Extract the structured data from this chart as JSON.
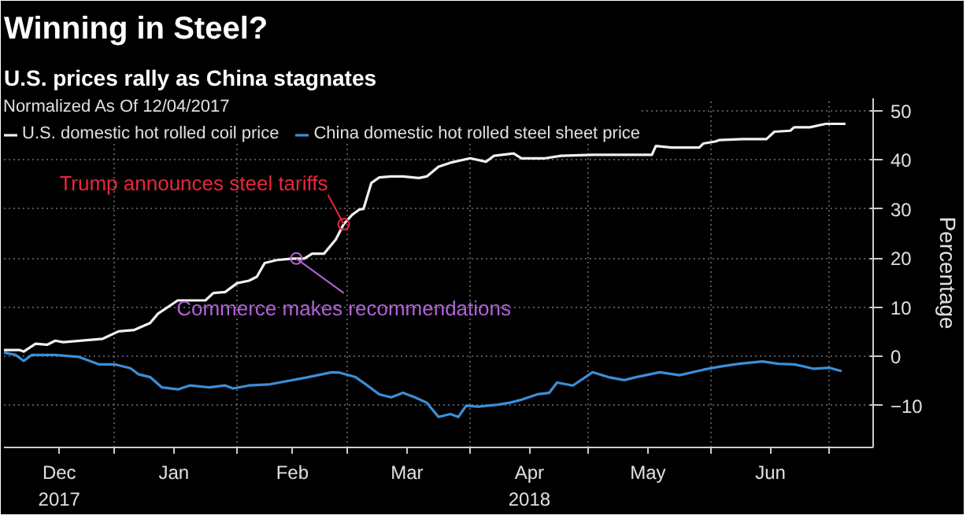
{
  "chart_data": {
    "type": "line",
    "title": "Winning in Steel?",
    "subtitle": "U.S. prices rally as China stagnates",
    "legend_title": "Normalized As Of 12/04/2017",
    "ylabel": "Percentage",
    "xlim": [
      "2017-12-04",
      "2018-07-12"
    ],
    "ylim": [
      -18.5,
      52.5
    ],
    "yticks": [
      -10,
      0,
      10,
      20,
      30,
      40,
      50
    ],
    "xticks": [
      {
        "value": "2017-12-18",
        "label": "Dec\n2017"
      },
      {
        "value": "2018-01-01",
        "label": null
      },
      {
        "value": "2018-01-16",
        "label": "Jan"
      },
      {
        "value": "2018-02-01",
        "label": null
      },
      {
        "value": "2018-02-15",
        "label": "Feb"
      },
      {
        "value": "2018-03-01",
        "label": null
      },
      {
        "value": "2018-03-16",
        "label": "Mar"
      },
      {
        "value": "2018-04-01",
        "label": null
      },
      {
        "value": "2018-04-16",
        "label": "Apr\n2018"
      },
      {
        "value": "2018-05-01",
        "label": null
      },
      {
        "value": "2018-05-16",
        "label": "May"
      },
      {
        "value": "2018-06-01",
        "label": null
      },
      {
        "value": "2018-06-16",
        "label": "Jun"
      },
      {
        "value": "2018-07-01",
        "label": null
      }
    ],
    "grid": true,
    "legend": "top left",
    "line_style": "solid",
    "annotations": [
      {
        "text": "Trump announces steel tariffs",
        "x": "2018-02-28",
        "y": 26.9
      },
      {
        "text": "Commerce makes recommendations",
        "x": "2018-02-16",
        "y": 19.9
      }
    ],
    "series": [
      {
        "name": "U.S. domestic hot rolled coil price",
        "color": "#f0f0f0",
        "x": [
          "2017-12-04",
          "2017-12-08",
          "2017-12-09",
          "2017-12-12",
          "2017-12-15",
          "2017-12-17",
          "2017-12-19",
          "2017-12-29",
          "2018-01-02",
          "2018-01-06",
          "2018-01-10",
          "2018-01-12",
          "2018-01-17",
          "2018-01-24",
          "2018-01-26",
          "2018-01-29",
          "2018-02-01",
          "2018-02-04",
          "2018-02-06",
          "2018-02-08",
          "2018-02-11",
          "2018-02-15",
          "2018-02-18",
          "2018-02-20",
          "2018-02-23",
          "2018-02-26",
          "2018-02-28",
          "2018-03-02",
          "2018-03-04",
          "2018-03-05",
          "2018-03-07",
          "2018-03-09",
          "2018-03-12",
          "2018-03-15",
          "2018-03-19",
          "2018-03-21",
          "2018-03-24",
          "2018-03-27",
          "2018-04-01",
          "2018-04-05",
          "2018-04-07",
          "2018-04-12",
          "2018-04-14",
          "2018-04-20",
          "2018-04-24",
          "2018-05-02",
          "2018-05-06",
          "2018-05-17",
          "2018-05-18",
          "2018-05-22",
          "2018-05-29",
          "2018-05-30",
          "2018-06-02",
          "2018-06-03",
          "2018-06-09",
          "2018-06-15",
          "2018-06-17",
          "2018-06-21",
          "2018-06-22",
          "2018-06-26",
          "2018-06-30",
          "2018-07-05"
        ],
        "values": [
          1.3,
          1.3,
          1.0,
          2.6,
          2.4,
          3.2,
          2.9,
          3.6,
          5.1,
          5.4,
          6.8,
          8.7,
          11.4,
          11.4,
          12.9,
          13.1,
          14.9,
          15.4,
          16.2,
          19.0,
          19.6,
          19.9,
          19.9,
          20.9,
          20.9,
          23.8,
          26.9,
          28.7,
          29.9,
          30.0,
          35.3,
          36.4,
          36.6,
          36.6,
          36.3,
          36.6,
          38.6,
          39.4,
          40.3,
          39.6,
          40.8,
          41.3,
          40.3,
          40.3,
          40.8,
          41.0,
          41.0,
          41.0,
          42.8,
          42.5,
          42.5,
          43.3,
          43.7,
          44.0,
          44.2,
          44.2,
          45.7,
          45.9,
          46.6,
          46.6,
          47.3,
          47.3
        ]
      },
      {
        "name": "China domestic hot rolled steel sheet price",
        "color": "#3b8fd8",
        "x": [
          "2017-12-04",
          "2017-12-07",
          "2017-12-09",
          "2017-12-11",
          "2017-12-17",
          "2017-12-23",
          "2017-12-28",
          "2018-01-01",
          "2018-01-05",
          "2018-01-07",
          "2018-01-10",
          "2018-01-13",
          "2018-01-17",
          "2018-01-20",
          "2018-01-25",
          "2018-01-29",
          "2018-01-31",
          "2018-02-04",
          "2018-02-09",
          "2018-02-13",
          "2018-02-19",
          "2018-02-25",
          "2018-02-27",
          "2018-03-03",
          "2018-03-06",
          "2018-03-09",
          "2018-03-12",
          "2018-03-15",
          "2018-03-18",
          "2018-03-21",
          "2018-03-24",
          "2018-03-27",
          "2018-03-29",
          "2018-03-31",
          "2018-04-03",
          "2018-04-08",
          "2018-04-11",
          "2018-04-14",
          "2018-04-18",
          "2018-04-21",
          "2018-04-23",
          "2018-04-27",
          "2018-05-02",
          "2018-05-06",
          "2018-05-10",
          "2018-05-13",
          "2018-05-19",
          "2018-05-24",
          "2018-05-30",
          "2018-06-03",
          "2018-06-08",
          "2018-06-14",
          "2018-06-18",
          "2018-06-22",
          "2018-06-27",
          "2018-07-01",
          "2018-07-04"
        ],
        "values": [
          0.8,
          0.3,
          -0.9,
          0.3,
          0.3,
          -0.1,
          -1.6,
          -1.6,
          -2.4,
          -3.6,
          -4.2,
          -6.3,
          -6.7,
          -5.9,
          -6.3,
          -5.9,
          -6.5,
          -5.9,
          -5.7,
          -5.1,
          -4.2,
          -3.2,
          -3.3,
          -4.2,
          -5.9,
          -7.7,
          -8.3,
          -7.4,
          -8.3,
          -9.4,
          -12.3,
          -11.7,
          -12.3,
          -10.0,
          -10.2,
          -9.8,
          -9.4,
          -8.8,
          -7.7,
          -7.4,
          -5.3,
          -5.9,
          -3.2,
          -4.2,
          -4.8,
          -4.2,
          -3.2,
          -3.8,
          -2.7,
          -2.1,
          -1.5,
          -1.0,
          -1.5,
          -1.6,
          -2.5,
          -2.3,
          -3.0
        ]
      }
    ]
  }
}
